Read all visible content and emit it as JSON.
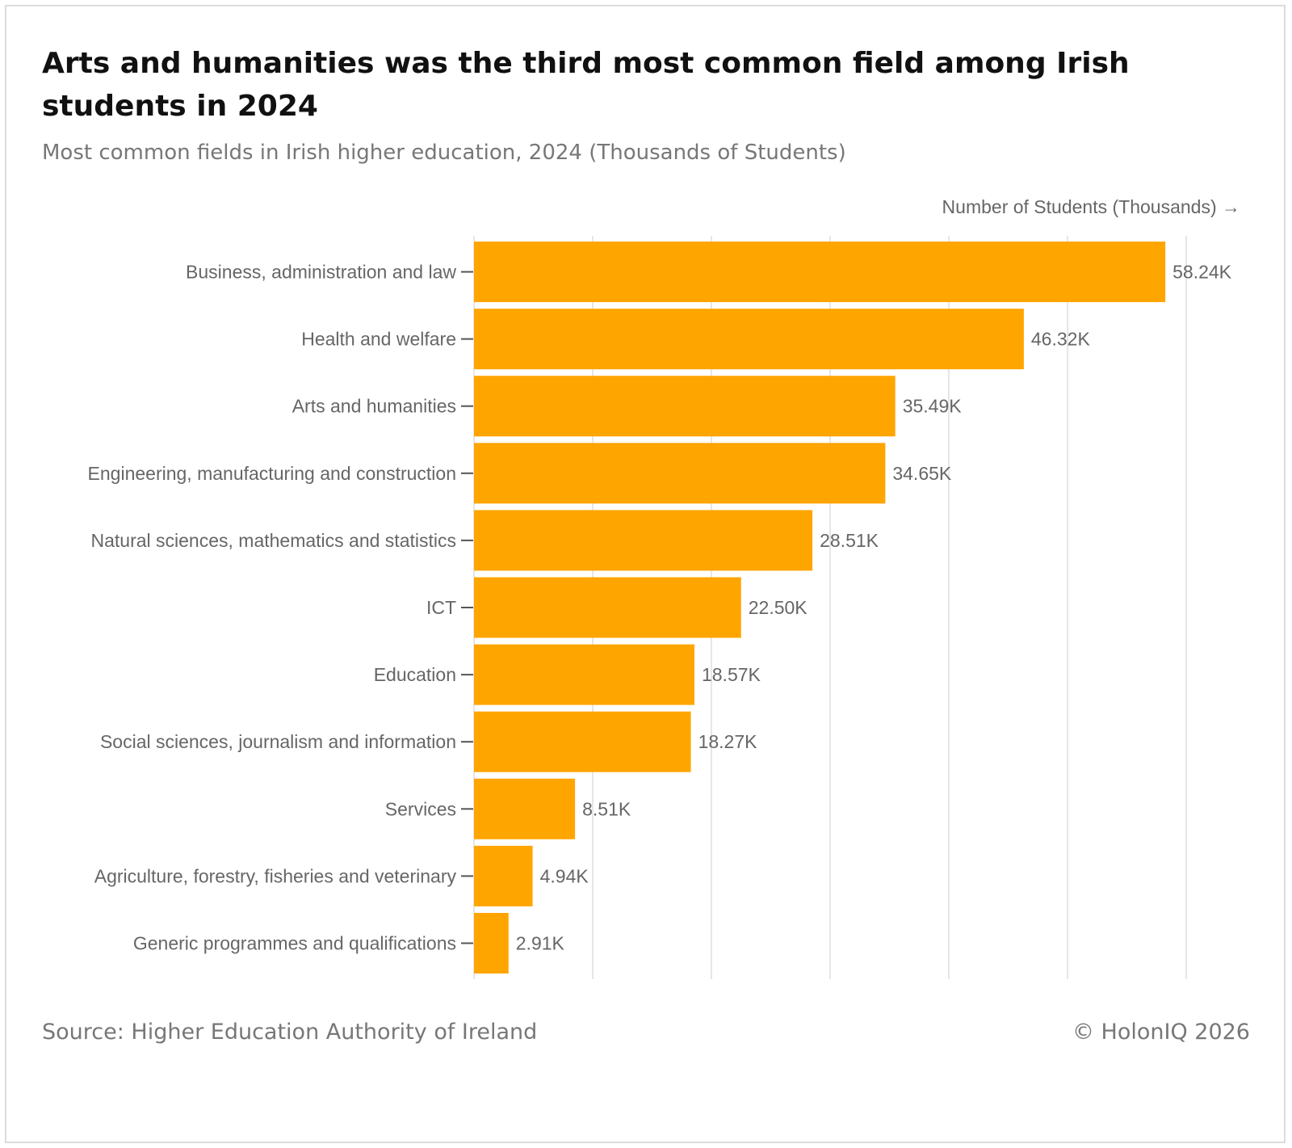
{
  "header": {
    "title": "Arts and humanities was the third most common field among Irish students in 2024",
    "subtitle": "Most common fields in Irish higher education, 2024 (Thousands of Students)"
  },
  "footer": {
    "source": "Source: Higher Education Authority of Ireland",
    "copyright": "© HolonIQ 2026"
  },
  "colors": {
    "bar": "#FFA500",
    "grid": "#e6e6e6",
    "axis_text": "#666666",
    "label_text": "#666666"
  },
  "chart_data": {
    "type": "bar",
    "orientation": "horizontal",
    "title": "Arts and humanities was the third most common field among Irish students in 2024",
    "subtitle": "Most common fields in Irish higher education, 2024 (Thousands of Students)",
    "xlabel": "Number of Students (Thousands) →",
    "ylabel": "",
    "xlim": [
      0,
      62.5
    ],
    "grid": true,
    "categories": [
      "Business, administration and law",
      "Health and welfare",
      "Arts and humanities",
      "Engineering, manufacturing and construction",
      "Natural sciences, mathematics and statistics",
      "ICT",
      "Education",
      "Social sciences, journalism and information",
      "Services",
      "Agriculture, forestry, fisheries and veterinary",
      "Generic programmes and qualifications"
    ],
    "values": [
      58.24,
      46.32,
      35.49,
      34.65,
      28.51,
      22.5,
      18.57,
      18.27,
      8.51,
      4.94,
      2.91
    ],
    "value_labels": [
      "58.24K",
      "46.32K",
      "35.49K",
      "34.65K",
      "28.51K",
      "22.50K",
      "18.57K",
      "18.27K",
      "8.51K",
      "4.94K",
      "2.91K"
    ]
  }
}
